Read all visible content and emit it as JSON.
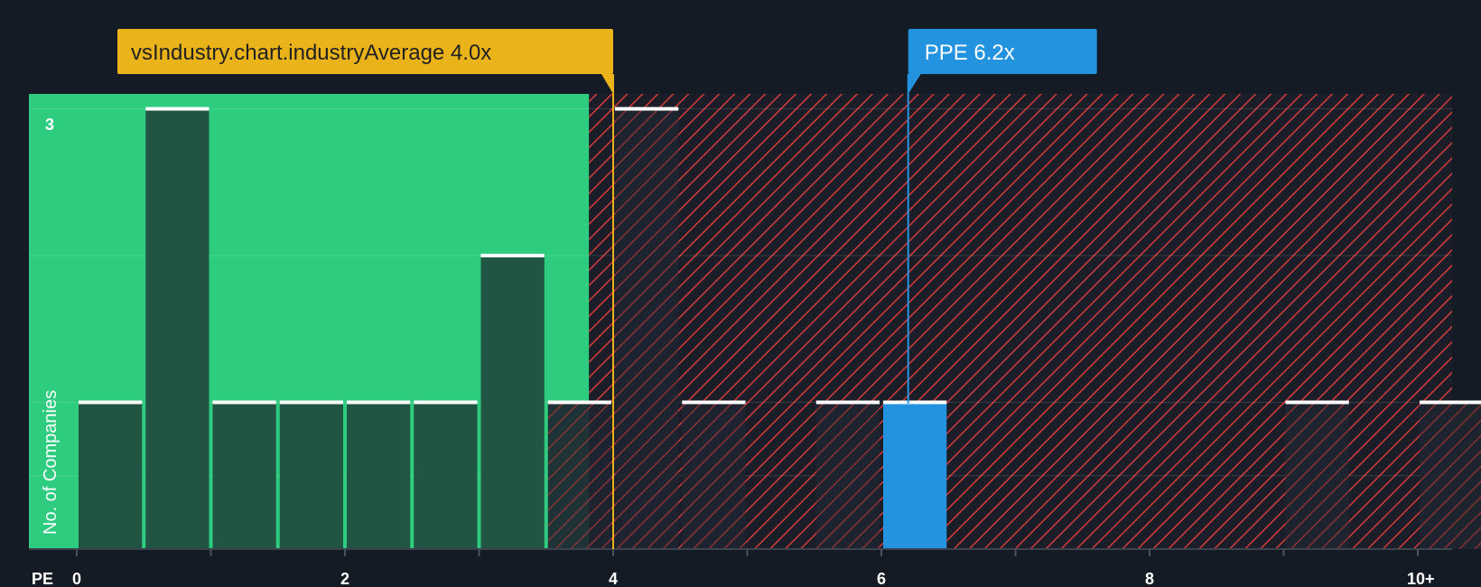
{
  "chart_data": {
    "type": "bar",
    "title": "",
    "xlabel": "PE",
    "ylabel": "No. of Companies",
    "xlim": [
      0,
      10.25
    ],
    "ylim": [
      0,
      3.1
    ],
    "x_ticks": [
      {
        "value": 0,
        "label": "0"
      },
      {
        "value": 2,
        "label": "2"
      },
      {
        "value": 4,
        "label": "4"
      },
      {
        "value": 6,
        "label": "6"
      },
      {
        "value": 8,
        "label": "8"
      },
      {
        "value": 10,
        "label": "10+"
      }
    ],
    "y_ticks": [
      {
        "value": 3,
        "label": "3"
      }
    ],
    "bin_width": 0.5,
    "bins": [
      {
        "start": 0.0,
        "count": 1
      },
      {
        "start": 0.5,
        "count": 3
      },
      {
        "start": 1.0,
        "count": 1
      },
      {
        "start": 1.5,
        "count": 1
      },
      {
        "start": 2.0,
        "count": 1
      },
      {
        "start": 2.5,
        "count": 1
      },
      {
        "start": 3.0,
        "count": 2
      },
      {
        "start": 3.5,
        "count": 1
      },
      {
        "start": 4.0,
        "count": 3
      },
      {
        "start": 4.5,
        "count": 1
      },
      {
        "start": 5.5,
        "count": 1
      },
      {
        "start": 6.0,
        "count": 1,
        "highlight": true
      },
      {
        "start": 9.0,
        "count": 1
      },
      {
        "start": 10.0,
        "count": 1
      }
    ],
    "fair_region_end": 3.82,
    "industry_average": {
      "value": 4.0,
      "label": "vsIndustry.chart.industryAverage 4.0x"
    },
    "company": {
      "value": 6.2,
      "label": "PPE 6.2x"
    }
  },
  "colors": {
    "background": "#151b24",
    "fair_zone": "#2ecc7f",
    "bar_in_fair": "#1f4b3e",
    "bar_dark": "#1e2530",
    "bar_top": "#ffffff",
    "hatch_line": "#d63b3b",
    "hatch_bg": "#1b1e28",
    "industry": "#ebb31a",
    "company": "#2393e0"
  }
}
